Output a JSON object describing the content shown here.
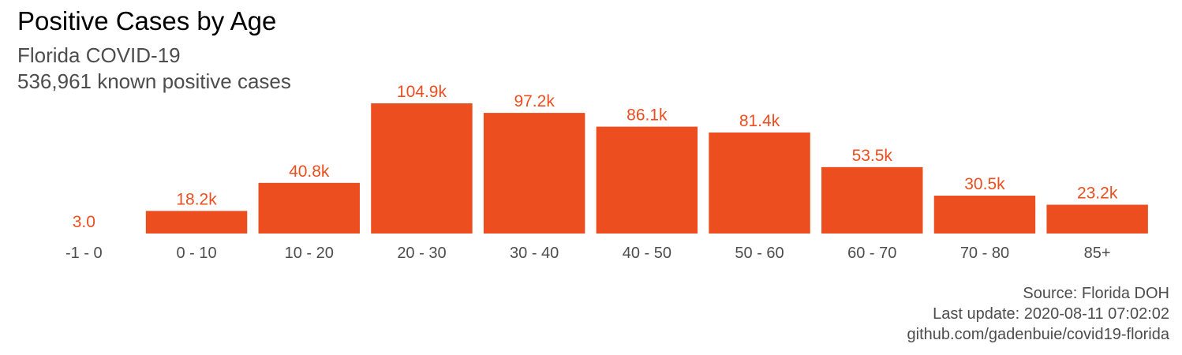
{
  "chart_data": {
    "type": "bar",
    "title": "Positive Cases by Age",
    "subtitle": [
      "Florida COVID-19",
      "536,961 known positive cases"
    ],
    "categories": [
      "-1 - 0",
      "0 - 10",
      "10 - 20",
      "20 - 30",
      "30 - 40",
      "40 - 50",
      "50 - 60",
      "60 - 70",
      "70 - 80",
      "85+"
    ],
    "values": [
      3,
      18200,
      40800,
      104900,
      97200,
      86100,
      81400,
      53500,
      30500,
      23200
    ],
    "data_labels": [
      "3.0",
      "18.2k",
      "40.8k",
      "104.9k",
      "97.2k",
      "86.1k",
      "81.4k",
      "53.5k",
      "30.5k",
      "23.2k"
    ],
    "ylim": [
      0,
      104900
    ],
    "xlabel": "",
    "ylabel": "",
    "grid": false,
    "bar_color": "#EC4E20",
    "label_color": "#EC4E20",
    "caption": [
      "Source: Florida DOH",
      "Last update: 2020-08-11 07:02:02",
      "github.com/gadenbuie/covid19-florida"
    ]
  }
}
